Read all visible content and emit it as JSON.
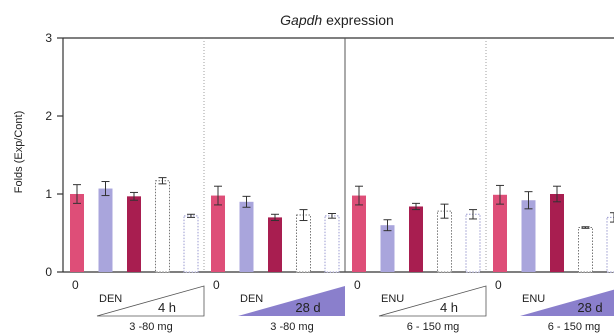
{
  "chart_data": {
    "type": "bar",
    "title_italic": "Gapdh",
    "title_rest": " expression",
    "ylabel": "Folds (Exp/Cont)",
    "ylim": [
      0,
      3
    ],
    "yticks": [
      "0",
      "1",
      "2",
      "3"
    ],
    "grid": false,
    "colors": {
      "pink": "#de4e78",
      "lavender": "#a9a5dc",
      "maroon": "#a81e50",
      "white": "#ffffff",
      "white_blue": "#ffffff",
      "triangle": "#8a7fcc",
      "axis": "#333333"
    },
    "groups": [
      {
        "zero_label": "0",
        "compound": "DEN",
        "time": "4 h",
        "time_filled": false,
        "dose": "3 -80 mg",
        "bars": [
          {
            "value": 1.0,
            "err": 0.12,
            "fill": "pink"
          },
          {
            "value": 1.07,
            "err": 0.09,
            "fill": "lavender"
          },
          {
            "value": 0.97,
            "err": 0.05,
            "fill": "maroon"
          },
          {
            "value": 1.17,
            "err": 0.04,
            "fill": "white"
          },
          {
            "value": 0.72,
            "err": 0.02,
            "fill": "white_blue"
          }
        ]
      },
      {
        "zero_label": "0",
        "compound": "DEN",
        "time": "28 d",
        "time_filled": true,
        "dose": "3 -80 mg",
        "bars": [
          {
            "value": 0.98,
            "err": 0.12,
            "fill": "pink"
          },
          {
            "value": 0.9,
            "err": 0.07,
            "fill": "lavender"
          },
          {
            "value": 0.7,
            "err": 0.04,
            "fill": "maroon"
          },
          {
            "value": 0.73,
            "err": 0.07,
            "fill": "white"
          },
          {
            "value": 0.72,
            "err": 0.03,
            "fill": "white_blue"
          }
        ]
      },
      {
        "zero_label": "0",
        "compound": "ENU",
        "time": "4 h",
        "time_filled": false,
        "dose": "6 - 150 mg",
        "bars": [
          {
            "value": 0.98,
            "err": 0.12,
            "fill": "pink"
          },
          {
            "value": 0.6,
            "err": 0.07,
            "fill": "lavender"
          },
          {
            "value": 0.84,
            "err": 0.04,
            "fill": "maroon"
          },
          {
            "value": 0.78,
            "err": 0.09,
            "fill": "white"
          },
          {
            "value": 0.74,
            "err": 0.06,
            "fill": "white_blue"
          }
        ]
      },
      {
        "zero_label": "0",
        "compound": "ENU",
        "time": "28 d",
        "time_filled": true,
        "dose": "6 - 150 mg",
        "bars": [
          {
            "value": 0.99,
            "err": 0.12,
            "fill": "pink"
          },
          {
            "value": 0.92,
            "err": 0.11,
            "fill": "lavender"
          },
          {
            "value": 1.0,
            "err": 0.1,
            "fill": "maroon"
          },
          {
            "value": 0.57,
            "err": 0.01,
            "fill": "white"
          },
          {
            "value": 0.7,
            "err": 0.06,
            "fill": "white_blue"
          }
        ]
      }
    ]
  }
}
